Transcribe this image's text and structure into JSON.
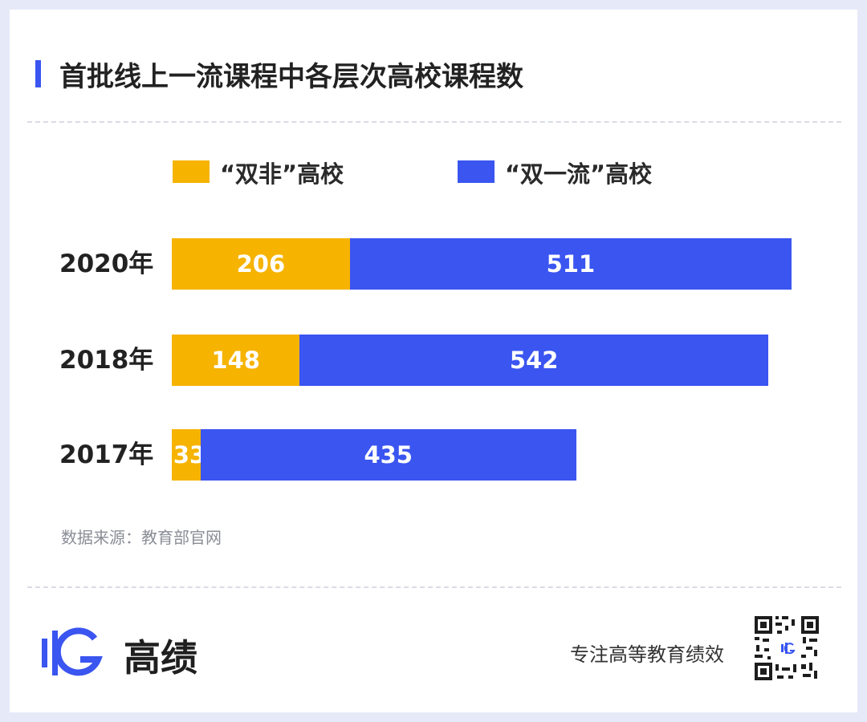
{
  "title": "首批线上一流课程中各层次高校课程数",
  "source": "数据来源：教育部官网",
  "brand": {
    "name": "高绩",
    "tagline": "专注高等教育绩效",
    "logo_icon": "gaoji-logo-icon",
    "qr_icon": "qr-code-icon"
  },
  "colors": {
    "accent": "#3a55f0",
    "shuangfei": "#f6b300",
    "shuangyiliu": "#3a55f0"
  },
  "chart_data": {
    "type": "bar",
    "orientation": "horizontal",
    "stacked": true,
    "categories": [
      "2020年",
      "2018年",
      "2017年"
    ],
    "series": [
      {
        "name": "“双非”高校",
        "color": "#f6b300",
        "values": [
          206,
          148,
          33
        ]
      },
      {
        "name": "“双一流”高校",
        "color": "#3a55f0",
        "values": [
          511,
          542,
          435
        ]
      }
    ],
    "title": "首批线上一流课程中各层次高校课程数",
    "xlabel": "",
    "ylabel": "",
    "xlim": [
      0,
      717
    ],
    "legend": "top",
    "grid": false,
    "data_labels": true
  }
}
